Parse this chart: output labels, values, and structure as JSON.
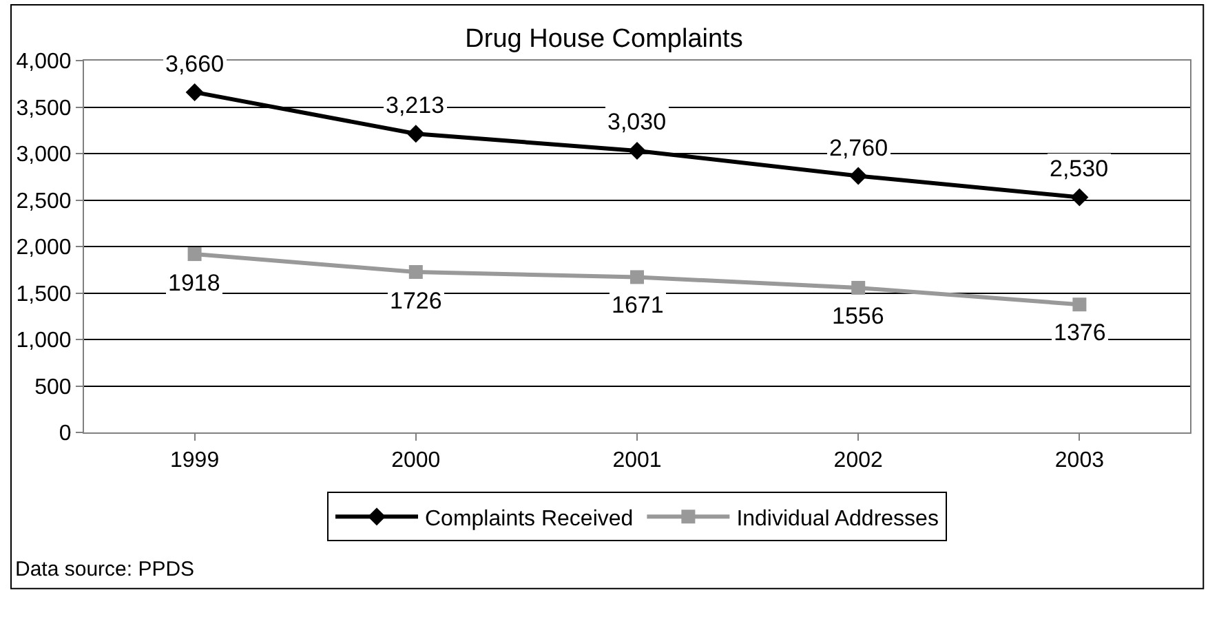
{
  "chart_data": {
    "type": "line",
    "title": "Drug House Complaints",
    "categories": [
      "1999",
      "2000",
      "2001",
      "2002",
      "2003"
    ],
    "series": [
      {
        "name": "Complaints Received",
        "color": "#000000",
        "marker": "diamond",
        "values": [
          3660,
          3213,
          3030,
          2760,
          2530
        ],
        "value_labels": [
          "3,660",
          "3,213",
          "3,030",
          "2,760",
          "2,530"
        ]
      },
      {
        "name": "Individual Addresses",
        "color": "#999999",
        "marker": "square",
        "values": [
          1918,
          1726,
          1671,
          1556,
          1376
        ],
        "value_labels": [
          "1918",
          "1726",
          "1671",
          "1556",
          "1376"
        ]
      }
    ],
    "ylim": [
      0,
      4000
    ],
    "yticks": [
      0,
      500,
      {
        "value": 1000,
        "label": "1,000"
      },
      {
        "value": 1500,
        "label": "1,500"
      },
      {
        "value": 2000,
        "label": "2,000"
      },
      {
        "value": 2500,
        "label": "2,500"
      },
      {
        "value": 3000,
        "label": "3,000"
      },
      {
        "value": 3500,
        "label": "3,500"
      },
      {
        "value": 4000,
        "label": "4,000"
      }
    ],
    "grid": "y",
    "legend": "bottom",
    "line_style": "solid",
    "annotations": [
      "Data source: PPDS"
    ]
  }
}
